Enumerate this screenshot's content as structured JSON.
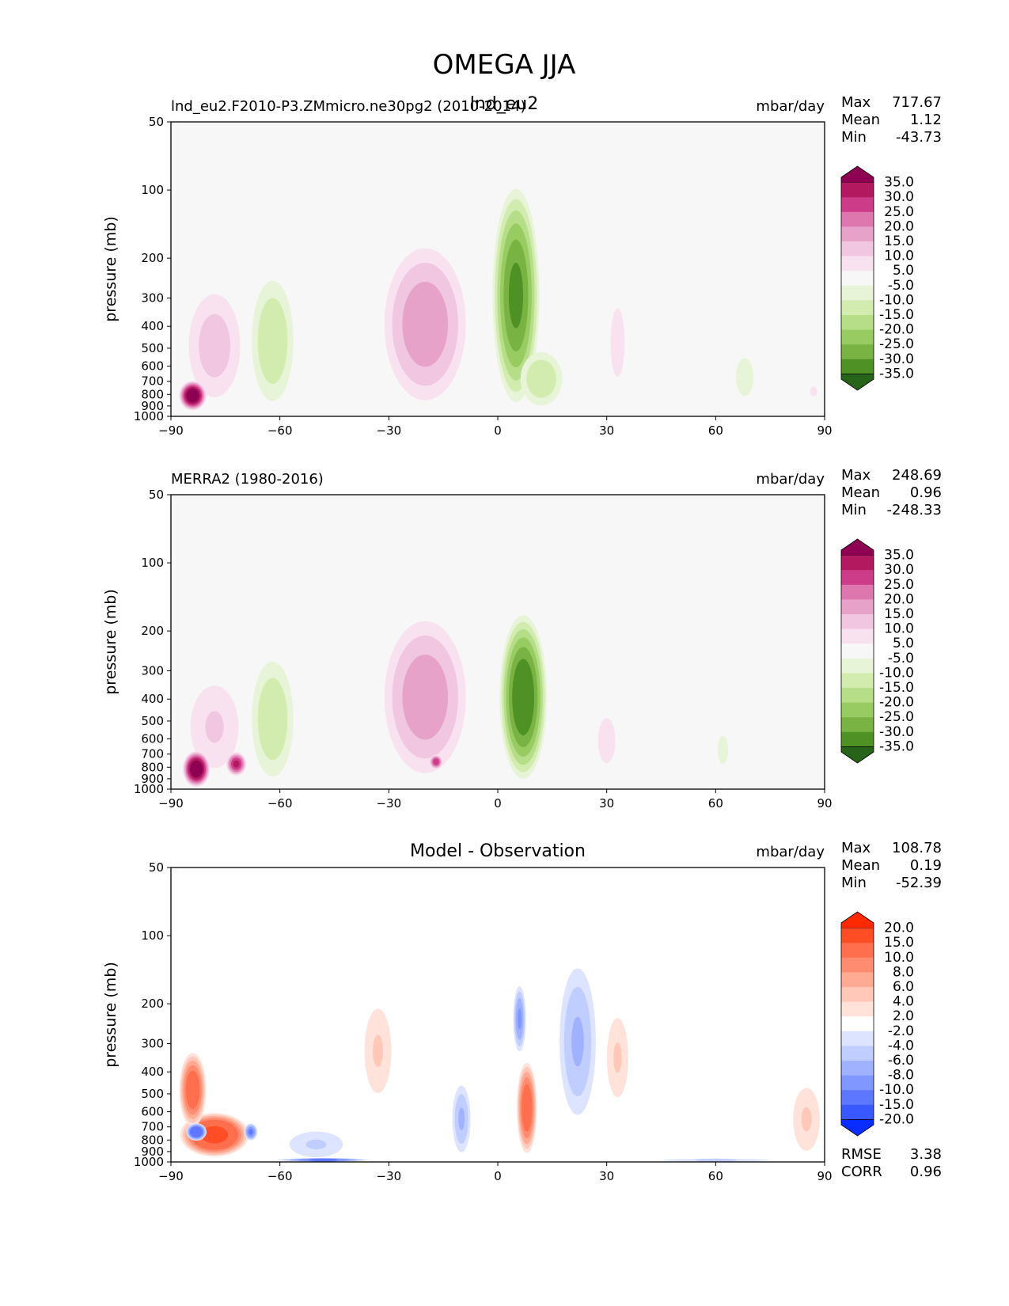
{
  "figure": {
    "title": "OMEGA JJA",
    "overlap_label": "lnd_eu2"
  },
  "chart_data": [
    {
      "type": "heatmap",
      "panel": "model",
      "title_left": "lnd_eu2.F2010-P3.ZMmicro.ne30pg2 (2010-2014)",
      "title_center": "",
      "units": "mbar/day",
      "xlabel": "",
      "ylabel": "pressure (mb)",
      "xlim": [
        -90,
        90
      ],
      "ylim": [
        1000,
        50
      ],
      "x_ticks": [
        "−90",
        "−60",
        "−30",
        "0",
        "30",
        "60",
        "90"
      ],
      "y_ticks": [
        "50",
        "100",
        "200",
        "300",
        "400",
        "500",
        "600",
        "700",
        "800",
        "900",
        "1000"
      ],
      "stats": {
        "max_label": "Max",
        "max": "717.67",
        "mean_label": "Mean",
        "mean": "1.12",
        "min_label": "Min",
        "min": "-43.73"
      },
      "colorbar": {
        "labels": [
          "35.0",
          "30.0",
          "25.0",
          "20.0",
          "15.0",
          "10.0",
          "5.0",
          "-5.0",
          "-10.0",
          "-15.0",
          "-20.0",
          "-25.0",
          "-30.0",
          "-35.0"
        ],
        "colors": [
          "#8e0152",
          "#b3195f",
          "#cc3c89",
          "#de77ae",
          "#e7a2c9",
          "#f1c6e0",
          "#f9e2ef",
          "#f7f7f7",
          "#e8f4d8",
          "#d2ecb0",
          "#b6de88",
          "#98cb62",
          "#79b344",
          "#4f9125",
          "#276419"
        ]
      },
      "features": [
        {
          "lat": -78,
          "p": 600,
          "dlat": 9,
          "dp": 350,
          "value": 12
        },
        {
          "lat": -84,
          "p": 820,
          "dlat": 4,
          "dp": 130,
          "value": 40
        },
        {
          "lat": -62,
          "p": 600,
          "dlat": 7,
          "dp": 380,
          "value": -14
        },
        {
          "lat": -20,
          "p": 560,
          "dlat": 13,
          "dp": 400,
          "value": 18
        },
        {
          "lat": 5,
          "p": 520,
          "dlat": 7,
          "dp": 430,
          "value": -30
        },
        {
          "lat": 12,
          "p": 720,
          "dlat": 7,
          "dp": 230,
          "value": -14
        },
        {
          "lat": 33,
          "p": 600,
          "dlat": 4,
          "dp": 370,
          "value": 6
        },
        {
          "lat": 68,
          "p": 750,
          "dlat": 5,
          "dp": 300,
          "value": -6
        },
        {
          "lat": 87,
          "p": 780,
          "dlat": 2,
          "dp": 80,
          "value": 6
        }
      ]
    },
    {
      "type": "heatmap",
      "panel": "observation",
      "title_left": "MERRA2 (1980-2016)",
      "title_center": "",
      "units": "mbar/day",
      "xlabel": "",
      "ylabel": "pressure (mb)",
      "xlim": [
        -90,
        90
      ],
      "ylim": [
        1000,
        50
      ],
      "x_ticks": [
        "−90",
        "−60",
        "−30",
        "0",
        "30",
        "60",
        "90"
      ],
      "y_ticks": [
        "50",
        "100",
        "200",
        "300",
        "400",
        "500",
        "600",
        "700",
        "800",
        "900",
        "1000"
      ],
      "stats": {
        "max_label": "Max",
        "max": "248.69",
        "mean_label": "Mean",
        "mean": "0.96",
        "min_label": "Min",
        "min": "-248.33"
      },
      "colorbar": {
        "labels": [
          "35.0",
          "30.0",
          "25.0",
          "20.0",
          "15.0",
          "10.0",
          "5.0",
          "-5.0",
          "-10.0",
          "-15.0",
          "-20.0",
          "-25.0",
          "-30.0",
          "-35.0"
        ],
        "colors": [
          "#8e0152",
          "#b3195f",
          "#cc3c89",
          "#de77ae",
          "#e7a2c9",
          "#f1c6e0",
          "#f9e2ef",
          "#f7f7f7",
          "#e8f4d8",
          "#d2ecb0",
          "#b6de88",
          "#98cb62",
          "#79b344",
          "#4f9125",
          "#276419"
        ]
      },
      "features": [
        {
          "lat": -78,
          "p": 620,
          "dlat": 9,
          "dp": 320,
          "value": 10
        },
        {
          "lat": -83,
          "p": 830,
          "dlat": 4,
          "dp": 160,
          "value": 40
        },
        {
          "lat": -72,
          "p": 780,
          "dlat": 3,
          "dp": 100,
          "value": 30
        },
        {
          "lat": -62,
          "p": 620,
          "dlat": 7,
          "dp": 380,
          "value": -14
        },
        {
          "lat": -20,
          "p": 560,
          "dlat": 13,
          "dp": 400,
          "value": 18
        },
        {
          "lat": -17,
          "p": 760,
          "dlat": 2,
          "dp": 60,
          "value": 28
        },
        {
          "lat": 7,
          "p": 560,
          "dlat": 7,
          "dp": 400,
          "value": -34
        },
        {
          "lat": 30,
          "p": 680,
          "dlat": 5,
          "dp": 300,
          "value": 6
        },
        {
          "lat": 62,
          "p": 700,
          "dlat": 3,
          "dp": 200,
          "value": -6
        }
      ]
    },
    {
      "type": "heatmap",
      "panel": "difference",
      "title_left": "",
      "title_center": "Model - Observation",
      "units": "mbar/day",
      "xlabel": "",
      "ylabel": "pressure (mb)",
      "xlim": [
        -90,
        90
      ],
      "ylim": [
        1000,
        50
      ],
      "x_ticks": [
        "−90",
        "−60",
        "−30",
        "0",
        "30",
        "60",
        "90"
      ],
      "y_ticks": [
        "50",
        "100",
        "200",
        "300",
        "400",
        "500",
        "600",
        "700",
        "800",
        "900",
        "1000"
      ],
      "stats": {
        "max_label": "Max",
        "max": "108.78",
        "mean_label": "Mean",
        "mean": "0.19",
        "min_label": "Min",
        "min": "-52.39"
      },
      "extra_stats": {
        "rmse_label": "RMSE",
        "rmse": "3.38",
        "corr_label": "CORR",
        "corr": "0.96"
      },
      "colorbar": {
        "labels": [
          "20.0",
          "15.0",
          "10.0",
          "8.0",
          "6.0",
          "4.0",
          "2.0",
          "-2.0",
          "-4.0",
          "-6.0",
          "-8.0",
          "-10.0",
          "-15.0",
          "-20.0"
        ],
        "colors": [
          "#ff2a00",
          "#ff4d26",
          "#ff6e4d",
          "#ff8c70",
          "#ffab94",
          "#ffc8b8",
          "#ffe3da",
          "#ffffff",
          "#dde4ff",
          "#c0cdff",
          "#a0b2ff",
          "#8097ff",
          "#5d78ff",
          "#3a58ff",
          "#0a2dff"
        ]
      },
      "features": [
        {
          "lat": -78,
          "p": 780,
          "dlat": 10,
          "dp": 180,
          "value": 16
        },
        {
          "lat": -84,
          "p": 520,
          "dlat": 4,
          "dp": 200,
          "value": 12
        },
        {
          "lat": -83,
          "p": 740,
          "dlat": 3,
          "dp": 70,
          "value": -14
        },
        {
          "lat": -68,
          "p": 740,
          "dlat": 2,
          "dp": 70,
          "value": -10
        },
        {
          "lat": -50,
          "p": 850,
          "dlat": 10,
          "dp": 150,
          "value": -4
        },
        {
          "lat": -48,
          "p": 985,
          "dlat": 14,
          "dp": 25,
          "value": -10
        },
        {
          "lat": -33,
          "p": 380,
          "dlat": 5,
          "dp": 200,
          "value": 4
        },
        {
          "lat": -10,
          "p": 700,
          "dlat": 3,
          "dp": 270,
          "value": -6
        },
        {
          "lat": 6,
          "p": 250,
          "dlat": 2,
          "dp": 90,
          "value": -8
        },
        {
          "lat": 8,
          "p": 650,
          "dlat": 3,
          "dp": 300,
          "value": 12
        },
        {
          "lat": 22,
          "p": 420,
          "dlat": 6,
          "dp": 300,
          "value": -6
        },
        {
          "lat": 33,
          "p": 400,
          "dlat": 4,
          "dp": 200,
          "value": 4
        },
        {
          "lat": 85,
          "p": 720,
          "dlat": 5,
          "dp": 300,
          "value": 4
        },
        {
          "lat": 60,
          "p": 985,
          "dlat": 20,
          "dp": 20,
          "value": -4
        }
      ]
    }
  ]
}
